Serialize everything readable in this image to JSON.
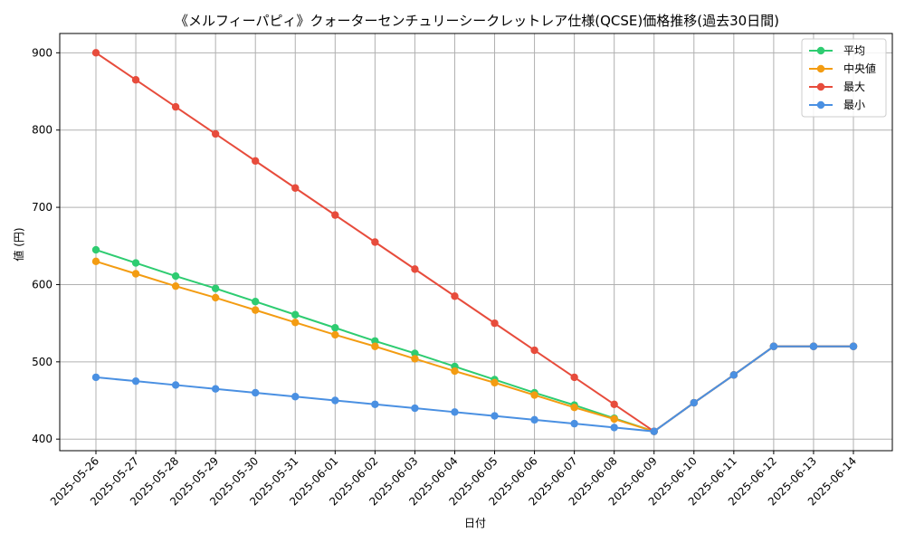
{
  "chart_data": {
    "type": "line",
    "title": "《メルフィーパピィ》クォーターセンチュリーシークレットレア仕様(QCSE)価格推移(過去30日間)",
    "xlabel": "日付",
    "ylabel": "値 (円)",
    "categories": [
      "2025-05-26",
      "2025-05-27",
      "2025-05-28",
      "2025-05-29",
      "2025-05-30",
      "2025-05-31",
      "2025-06-01",
      "2025-06-02",
      "2025-06-03",
      "2025-06-04",
      "2025-06-05",
      "2025-06-06",
      "2025-06-07",
      "2025-06-08",
      "2025-06-09",
      "2025-06-10",
      "2025-06-11",
      "2025-06-12",
      "2025-06-13",
      "2025-06-14"
    ],
    "ylim": [
      385,
      925
    ],
    "yticks": [
      400,
      500,
      600,
      700,
      800,
      900
    ],
    "grid": true,
    "legend_position": "top-right",
    "series": [
      {
        "name": "平均",
        "color": "#2ecc71",
        "values": [
          645,
          628,
          611,
          595,
          578,
          561,
          544,
          527,
          511,
          494,
          477,
          460,
          444,
          427,
          410,
          447,
          483,
          520,
          520,
          520
        ]
      },
      {
        "name": "中央値",
        "color": "#f39c12",
        "values": [
          630,
          614,
          598,
          583,
          567,
          551,
          535,
          520,
          504,
          488,
          473,
          457,
          441,
          426,
          410,
          447,
          483,
          520,
          520,
          520
        ]
      },
      {
        "name": "最大",
        "color": "#e74c3c",
        "values": [
          900,
          865,
          830,
          795,
          760,
          725,
          690,
          655,
          620,
          585,
          550,
          515,
          480,
          445,
          410,
          447,
          483,
          520,
          520,
          520
        ]
      },
      {
        "name": "最小",
        "color": "#4a90e2",
        "values": [
          480,
          475,
          470,
          465,
          460,
          455,
          450,
          445,
          440,
          435,
          430,
          425,
          420,
          415,
          410,
          447,
          483,
          520,
          520,
          520
        ]
      }
    ]
  }
}
